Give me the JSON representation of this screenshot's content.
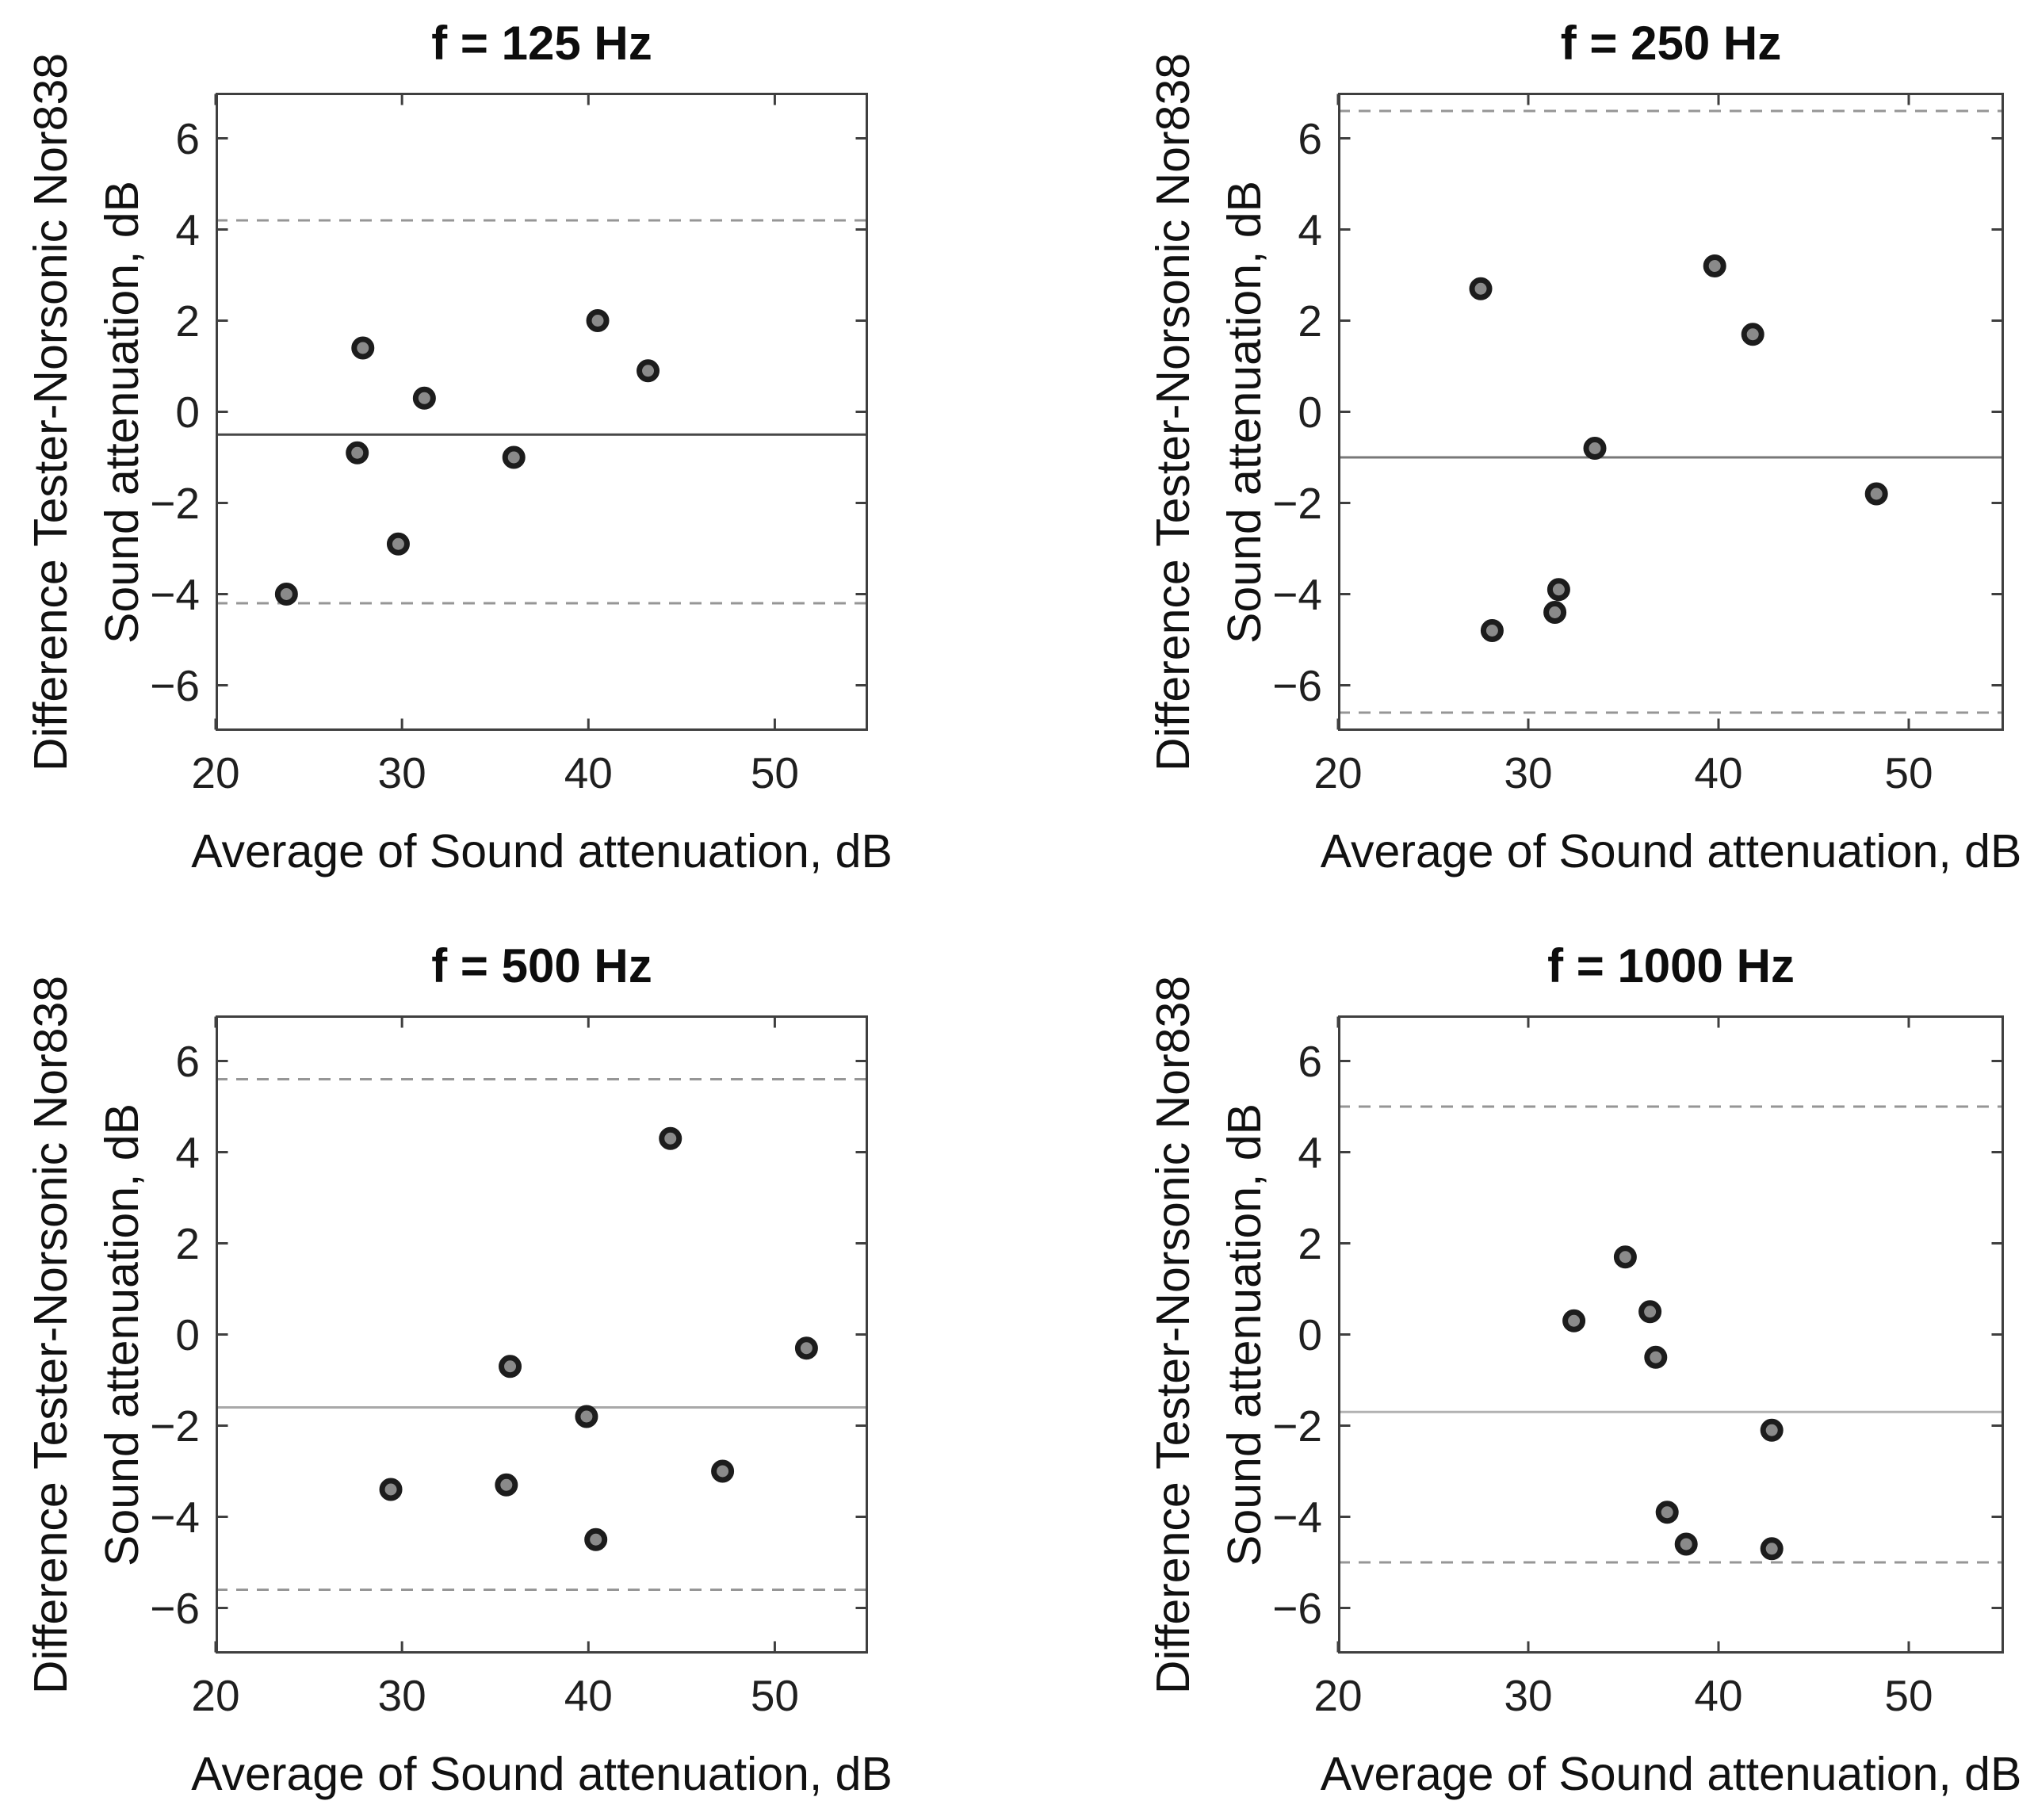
{
  "page": {
    "background": "#ffffff",
    "description": "2x2 grid of Bland-Altman style scatter plots of sound attenuation differences"
  },
  "styles": {
    "marker_fill": "#8a8a8a",
    "marker_edge": "#1c1c1c",
    "axis_color": "#3f3f3f",
    "tick_label_color": "#1f1f1f",
    "limit_color": "#969696",
    "limit_dash": [
      15,
      11
    ]
  },
  "chart_data": [
    {
      "type": "scatter",
      "title": "f = 125 Hz",
      "xlabel": "Average of Sound attenuation, dB",
      "ylabel_line1": "Difference Tester-Norsonic Nor838",
      "ylabel_line2": "Sound attenuation, dB",
      "xlim": [
        20,
        55
      ],
      "ylim": [
        -7,
        7
      ],
      "xticks": [
        20,
        30,
        40,
        50
      ],
      "yticks": [
        -6,
        -4,
        -2,
        0,
        2,
        4,
        6
      ],
      "mean_line": -0.5,
      "upper_limit": 4.2,
      "lower_limit": -4.2,
      "mean_color": "#474747",
      "grid": false,
      "legend": null,
      "points": [
        [
          23.8,
          -4.0
        ],
        [
          27.6,
          -0.9
        ],
        [
          27.9,
          1.4
        ],
        [
          29.8,
          -2.9
        ],
        [
          31.2,
          0.3
        ],
        [
          36.0,
          -1.0
        ],
        [
          40.5,
          2.0
        ],
        [
          43.2,
          0.9
        ]
      ]
    },
    {
      "type": "scatter",
      "title": "f = 250 Hz",
      "xlabel": "Average of Sound attenuation, dB",
      "ylabel_line1": "Difference Tester-Norsonic Nor838",
      "ylabel_line2": "Sound attenuation, dB",
      "xlim": [
        20,
        55
      ],
      "ylim": [
        -7,
        7
      ],
      "xticks": [
        20,
        30,
        40,
        50
      ],
      "yticks": [
        -6,
        -4,
        -2,
        0,
        2,
        4,
        6
      ],
      "mean_line": -1.0,
      "upper_limit": 6.6,
      "lower_limit": -6.6,
      "mean_color": "#787878",
      "grid": false,
      "legend": null,
      "points": [
        [
          27.5,
          2.7
        ],
        [
          28.1,
          -4.8
        ],
        [
          31.4,
          -4.4
        ],
        [
          31.6,
          -3.9
        ],
        [
          33.5,
          -0.8
        ],
        [
          39.8,
          3.2
        ],
        [
          41.8,
          1.7
        ],
        [
          48.3,
          -1.8
        ]
      ]
    },
    {
      "type": "scatter",
      "title": "f = 500 Hz",
      "xlabel": "Average of Sound attenuation, dB",
      "ylabel_line1": "Difference Tester-Norsonic Nor838",
      "ylabel_line2": "Sound attenuation, dB",
      "xlim": [
        20,
        55
      ],
      "ylim": [
        -7,
        7
      ],
      "xticks": [
        20,
        30,
        40,
        50
      ],
      "yticks": [
        -6,
        -4,
        -2,
        0,
        2,
        4,
        6
      ],
      "mean_line": -1.6,
      "upper_limit": 5.6,
      "lower_limit": -5.6,
      "mean_color": "#a8a8a8",
      "grid": false,
      "legend": null,
      "points": [
        [
          29.4,
          -3.4
        ],
        [
          35.6,
          -3.3
        ],
        [
          35.8,
          -0.7
        ],
        [
          39.9,
          -1.8
        ],
        [
          40.4,
          -4.5
        ],
        [
          44.4,
          4.3
        ],
        [
          47.2,
          -3.0
        ],
        [
          51.7,
          -0.3
        ]
      ]
    },
    {
      "type": "scatter",
      "title": "f = 1000 Hz",
      "xlabel": "Average of Sound attenuation, dB",
      "ylabel_line1": "Difference Tester-Norsonic Nor838",
      "ylabel_line2": "Sound attenuation, dB",
      "xlim": [
        20,
        55
      ],
      "ylim": [
        -7,
        7
      ],
      "xticks": [
        20,
        30,
        40,
        50
      ],
      "yticks": [
        -6,
        -4,
        -2,
        0,
        2,
        4,
        6
      ],
      "mean_line": -1.7,
      "upper_limit": 5.0,
      "lower_limit": -5.0,
      "mean_color": "#b2b2b2",
      "grid": false,
      "legend": null,
      "points": [
        [
          32.4,
          0.3
        ],
        [
          35.1,
          1.7
        ],
        [
          36.4,
          0.5
        ],
        [
          36.7,
          -0.5
        ],
        [
          37.3,
          -3.9
        ],
        [
          38.3,
          -4.6
        ],
        [
          42.8,
          -2.1
        ],
        [
          42.8,
          -4.7
        ]
      ]
    }
  ]
}
